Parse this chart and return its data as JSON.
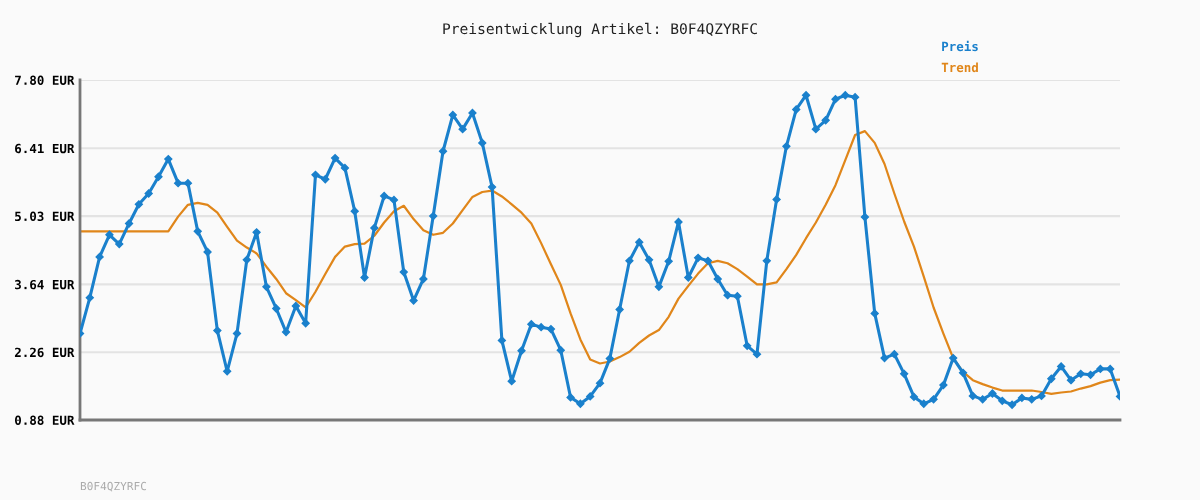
{
  "chart_data": {
    "type": "line",
    "title": "Preisentwicklung Artikel: B0F4QZYRFC",
    "categories": [
      null,
      null,
      null,
      null,
      null,
      null,
      null,
      null,
      null,
      null,
      null,
      null,
      null,
      null,
      null,
      null,
      null,
      null,
      null,
      null,
      null,
      null,
      null,
      null,
      null,
      null,
      null,
      null,
      null,
      null,
      null,
      null,
      null,
      null,
      null,
      null,
      null,
      null,
      null,
      null,
      null,
      null,
      null,
      null,
      null,
      null,
      null,
      null,
      null,
      null,
      null,
      null,
      null,
      null,
      null,
      null,
      null,
      null,
      null,
      null,
      null,
      null,
      null,
      null,
      null,
      null,
      null,
      null,
      null,
      null,
      null,
      null,
      null,
      null,
      null,
      null,
      null,
      null,
      null,
      null,
      null,
      null,
      null,
      null,
      null,
      null,
      null,
      null,
      null,
      null,
      null,
      null,
      null,
      null,
      null,
      null,
      null,
      null,
      null,
      null,
      null,
      null,
      null,
      null,
      null,
      null,
      null
    ],
    "series": [
      {
        "name": "Preis",
        "color": "#1a80cc",
        "marker": "diamond",
        "values": [
          2.64,
          3.37,
          4.2,
          4.65,
          4.46,
          4.88,
          5.27,
          5.49,
          5.83,
          6.19,
          5.7,
          5.7,
          4.72,
          4.3,
          2.7,
          1.87,
          2.64,
          4.14,
          4.7,
          3.59,
          3.15,
          2.67,
          3.2,
          2.85,
          5.87,
          5.78,
          6.21,
          6.01,
          5.13,
          3.78,
          4.79,
          5.44,
          5.36,
          3.89,
          3.31,
          3.75,
          5.03,
          6.35,
          7.09,
          6.8,
          7.13,
          6.52,
          5.62,
          2.5,
          1.67,
          2.29,
          2.83,
          2.77,
          2.73,
          2.3,
          1.34,
          1.21,
          1.36,
          1.63,
          2.13,
          3.13,
          4.12,
          4.5,
          4.14,
          3.59,
          4.11,
          4.91,
          3.78,
          4.18,
          4.12,
          3.75,
          3.42,
          3.4,
          2.39,
          2.22,
          4.12,
          5.37,
          6.45,
          7.2,
          7.49,
          6.8,
          6.98,
          7.41,
          7.49,
          7.45,
          5.01,
          3.05,
          2.14,
          2.22,
          1.82,
          1.35,
          1.21,
          1.3,
          1.59,
          2.14,
          1.84,
          1.37,
          1.3,
          1.42,
          1.27,
          1.19,
          1.33,
          1.3,
          1.37,
          1.72,
          1.97,
          1.69,
          1.82,
          1.8,
          1.92,
          1.92,
          1.36
        ]
      },
      {
        "name": "Trend",
        "color": "#e0861a",
        "marker": "none",
        "values": [
          4.72,
          4.72,
          4.72,
          4.72,
          4.72,
          4.72,
          4.72,
          4.72,
          4.72,
          4.72,
          5.02,
          5.26,
          5.3,
          5.26,
          5.1,
          4.81,
          4.53,
          4.39,
          4.27,
          4.0,
          3.75,
          3.46,
          3.32,
          3.17,
          3.49,
          3.85,
          4.2,
          4.41,
          4.46,
          4.47,
          4.63,
          4.9,
          5.13,
          5.24,
          4.97,
          4.74,
          4.65,
          4.69,
          4.88,
          5.15,
          5.42,
          5.52,
          5.55,
          5.43,
          5.27,
          5.1,
          4.88,
          4.48,
          4.05,
          3.63,
          3.05,
          2.52,
          2.11,
          2.03,
          2.07,
          2.16,
          2.27,
          2.45,
          2.6,
          2.71,
          2.98,
          3.35,
          3.61,
          3.86,
          4.07,
          4.12,
          4.07,
          3.95,
          3.8,
          3.64,
          3.64,
          3.68,
          3.95,
          4.24,
          4.58,
          4.9,
          5.26,
          5.66,
          6.17,
          6.68,
          6.76,
          6.52,
          6.09,
          5.49,
          4.92,
          4.41,
          3.8,
          3.17,
          2.64,
          2.14,
          1.86,
          1.69,
          1.61,
          1.54,
          1.48,
          1.48,
          1.48,
          1.48,
          1.45,
          1.41,
          1.44,
          1.46,
          1.52,
          1.57,
          1.64,
          1.69,
          1.7
        ]
      }
    ],
    "ylim": [
      0.88,
      7.8
    ],
    "yticks": [
      {
        "value": 0.88,
        "label": "0.88 EUR"
      },
      {
        "value": 2.26,
        "label": "2.26 EUR"
      },
      {
        "value": 3.64,
        "label": "3.64 EUR"
      },
      {
        "value": 5.03,
        "label": "5.03 EUR"
      },
      {
        "value": 6.41,
        "label": "6.41 EUR"
      },
      {
        "value": 7.8,
        "label": "7.80 EUR"
      }
    ],
    "grid": "y",
    "legend": "top right",
    "line_style": "solid",
    "annotations": [
      "B0F4QZYRFC"
    ]
  }
}
